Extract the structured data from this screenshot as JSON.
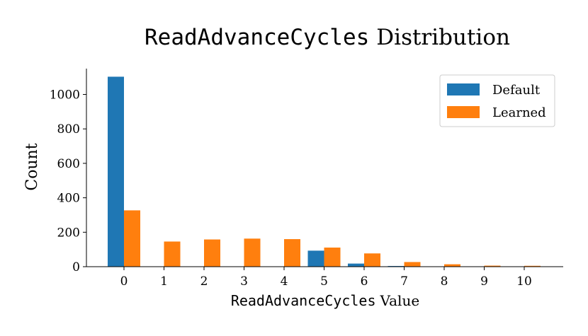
{
  "chart_data": {
    "type": "bar",
    "title_code": "ReadAdvanceCycles",
    "title_rest": "Distribution",
    "xlabel_code": "ReadAdvanceCycles",
    "xlabel_rest": "Value",
    "ylabel": "Count",
    "categories": [
      "0",
      "1",
      "2",
      "3",
      "4",
      "5",
      "6",
      "7",
      "8",
      "9",
      "10"
    ],
    "series": [
      {
        "name": "Default",
        "color": "#1f77b4",
        "values": [
          1103,
          0,
          0,
          0,
          0,
          93,
          18,
          4,
          0,
          0,
          0
        ]
      },
      {
        "name": "Learned",
        "color": "#ff7f0e",
        "values": [
          327,
          146,
          158,
          163,
          160,
          111,
          77,
          27,
          14,
          6,
          5
        ]
      }
    ],
    "ylim": [
      0,
      1150
    ],
    "yticks": [
      0,
      200,
      400,
      600,
      800,
      1000
    ],
    "legend": "top-right",
    "grid": false
  }
}
